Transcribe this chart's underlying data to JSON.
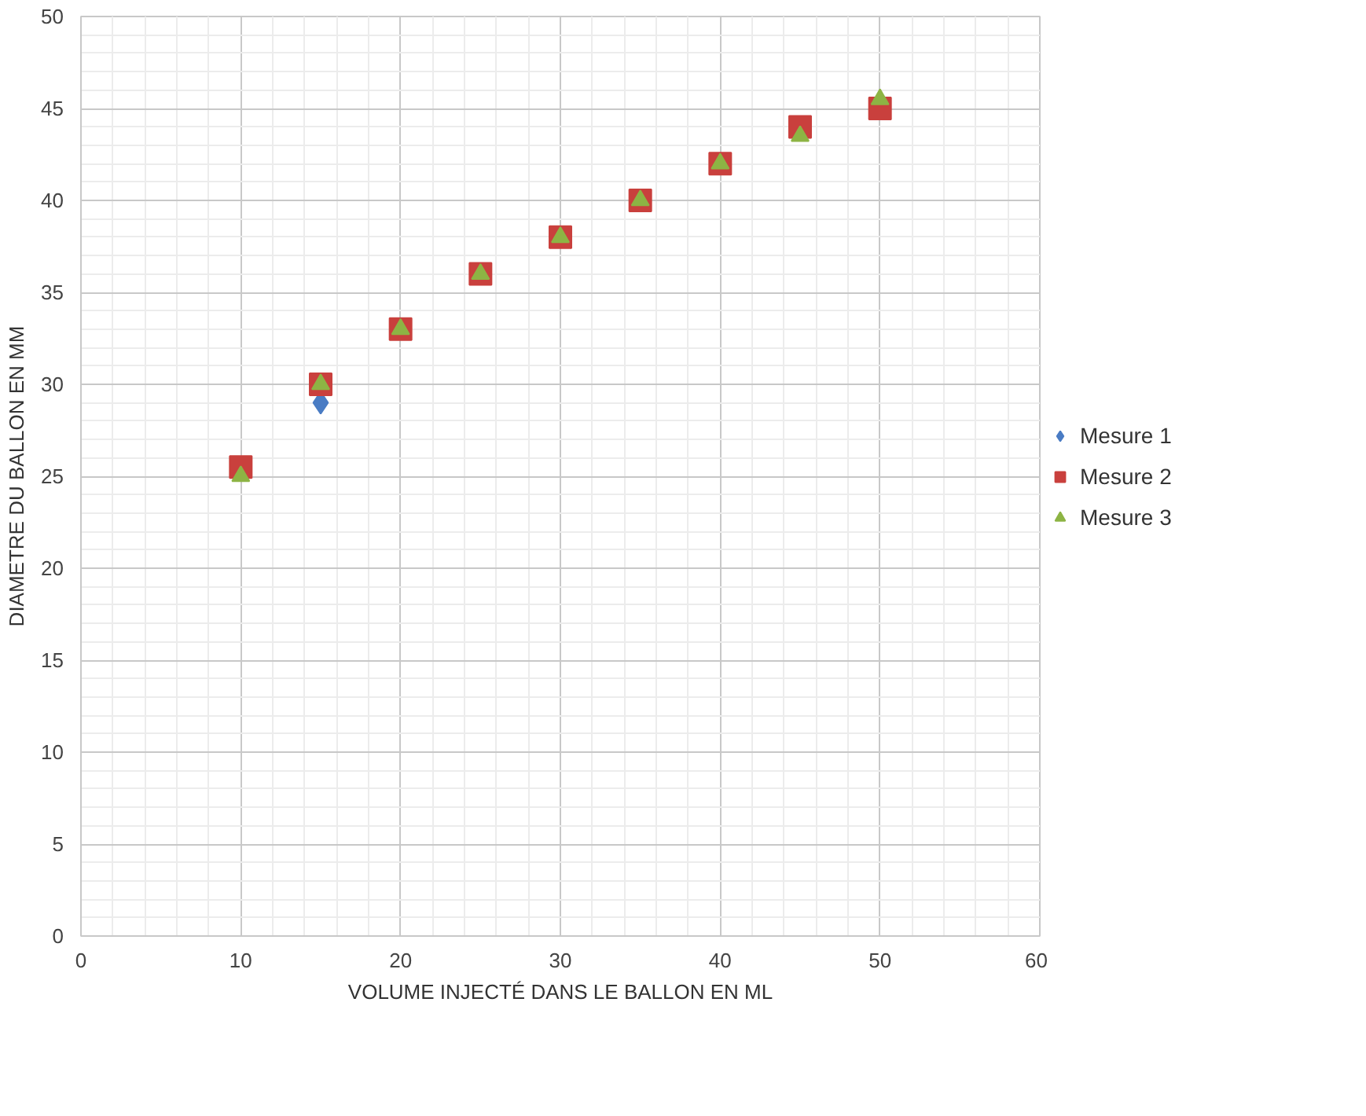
{
  "chart_data": {
    "type": "scatter",
    "xlabel": "VOLUME INJECTÉ DANS LE BALLON EN ML",
    "ylabel": "DIAMETRE DU BALLON EN MM",
    "x": [
      10,
      15,
      20,
      25,
      30,
      35,
      40,
      45,
      50
    ],
    "xlim": [
      0,
      60
    ],
    "xticks": [
      0,
      10,
      20,
      30,
      40,
      50,
      60
    ],
    "ylim": [
      0,
      50
    ],
    "yticks": [
      0,
      5,
      10,
      15,
      20,
      25,
      30,
      35,
      40,
      45,
      50
    ],
    "grid": true,
    "legend": "right",
    "series": [
      {
        "name": "Mesure 1",
        "color": "#4a7cc4",
        "marker": "diamond",
        "values": [
          null,
          29,
          null,
          null,
          null,
          null,
          null,
          null,
          null
        ]
      },
      {
        "name": "Mesure 2",
        "color": "#c9403d",
        "marker": "square",
        "values": [
          25.5,
          30,
          33,
          36,
          38,
          40,
          42,
          44,
          45
        ]
      },
      {
        "name": "Mesure 3",
        "color": "#8db444",
        "marker": "triangle",
        "values": [
          25,
          30,
          33,
          36,
          38,
          40,
          42,
          43.5,
          45.5
        ]
      }
    ]
  }
}
